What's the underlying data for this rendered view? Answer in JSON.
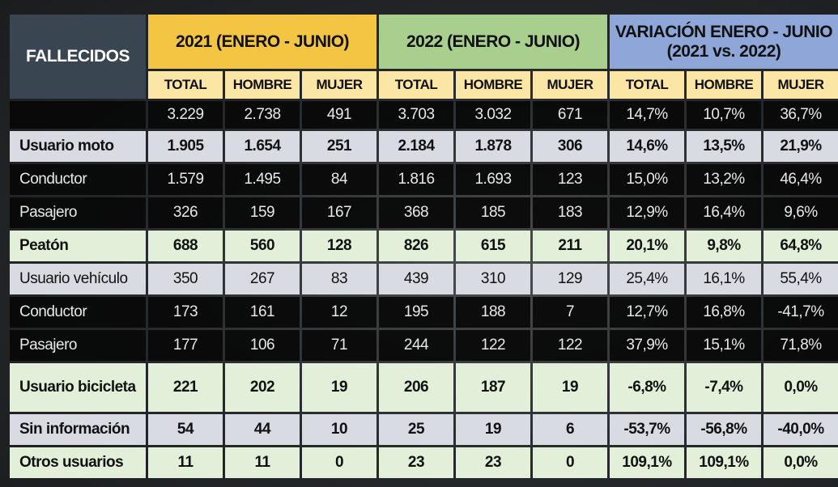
{
  "chart_data": {
    "type": "table",
    "row_header": "FALLECIDOS",
    "groups": [
      "2021 (ENERO - JUNIO)",
      "2022 (ENERO - JUNIO)",
      "VARIACIÓN ENERO - JUNIO (2021 vs. 2022)"
    ],
    "subheaders": [
      "TOTAL",
      "HOMBRE",
      "MUJER",
      "TOTAL",
      "HOMBRE",
      "MUJER",
      "TOTAL",
      "HOMBRE",
      "MUJER"
    ],
    "total_row": [
      "3.229",
      "2.738",
      "491",
      "3.703",
      "3.032",
      "671",
      "14,7%",
      "10,7%",
      "36,7%"
    ],
    "rows": [
      {
        "label": "Usuario moto",
        "values": [
          "1.905",
          "1.654",
          "251",
          "2.184",
          "1.878",
          "306",
          "14,6%",
          "13,5%",
          "21,9%"
        ]
      },
      {
        "label": "Conductor",
        "values": [
          "1.579",
          "1.495",
          "84",
          "1.816",
          "1.693",
          "123",
          "15,0%",
          "13,2%",
          "46,4%"
        ]
      },
      {
        "label": "Pasajero",
        "values": [
          "326",
          "159",
          "167",
          "368",
          "185",
          "183",
          "12,9%",
          "16,4%",
          "9,6%"
        ]
      },
      {
        "label": "Peatón",
        "values": [
          "688",
          "560",
          "128",
          "826",
          "615",
          "211",
          "20,1%",
          "9,8%",
          "64,8%"
        ]
      },
      {
        "label": "Usuario vehículo",
        "values": [
          "350",
          "267",
          "83",
          "439",
          "310",
          "129",
          "25,4%",
          "16,1%",
          "55,4%"
        ]
      },
      {
        "label": "Conductor",
        "values": [
          "173",
          "161",
          "12",
          "195",
          "188",
          "7",
          "12,7%",
          "16,8%",
          "-41,7%"
        ]
      },
      {
        "label": "Pasajero",
        "values": [
          "177",
          "106",
          "71",
          "244",
          "122",
          "122",
          "37,9%",
          "15,1%",
          "71,8%"
        ]
      },
      {
        "label": "Usuario bicicleta",
        "values": [
          "221",
          "202",
          "19",
          "206",
          "187",
          "19",
          "-6,8%",
          "-7,4%",
          "0,0%"
        ]
      },
      {
        "label": "Sin información",
        "values": [
          "54",
          "44",
          "10",
          "25",
          "19",
          "6",
          "-53,7%",
          "-56,8%",
          "-40,0%"
        ]
      },
      {
        "label": "Otros usuarios",
        "values": [
          "11",
          "11",
          "0",
          "23",
          "23",
          "0",
          "109,1%",
          "109,1%",
          "0,0%"
        ]
      }
    ],
    "colors": {
      "header_2021": "#f4c542",
      "header_2022": "#a8cf8e",
      "header_variation": "#8ea6d8",
      "subheader": "#fbe6a6",
      "corner": "#3a4552",
      "row_grey": "#d8dbe2",
      "row_green": "#e2efd9",
      "row_dark": "#080808"
    }
  }
}
